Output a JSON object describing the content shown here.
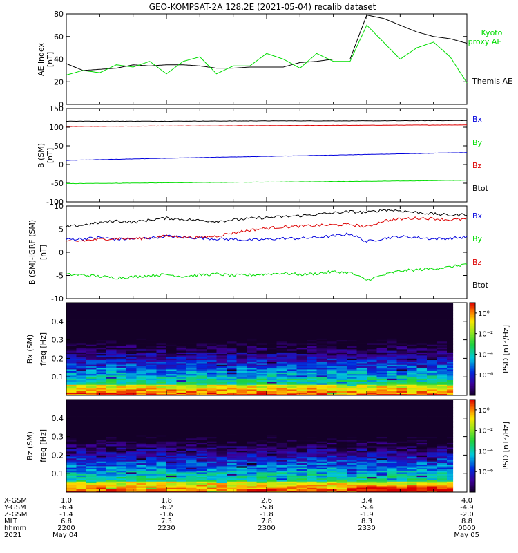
{
  "title": "GEO-KOMPSAT-2A 128.2E (2021-05-04) recalib dataset",
  "colors": {
    "black": "#000000",
    "green": "#00dd00",
    "blue": "#0000dd",
    "red": "#dd0000"
  },
  "panels": {
    "ae": {
      "ylabel": "AE index",
      "yunit": "[nT]",
      "ylim": [
        0,
        80
      ],
      "yticks": [
        "0",
        "20",
        "40",
        "60",
        "80"
      ],
      "legend": [
        {
          "text": "Kyoto",
          "color": "green"
        },
        {
          "text": "proxy AE",
          "color": "green"
        },
        {
          "text": "Themis AE",
          "color": "black"
        }
      ]
    },
    "bsm": {
      "ylabel": "B (SM)",
      "yunit": "[nT]",
      "ylim": [
        -100,
        150
      ],
      "yticks": [
        "-100",
        "-50",
        "0",
        "50",
        "100",
        "150"
      ],
      "legend": [
        {
          "text": "Bx",
          "color": "blue"
        },
        {
          "text": "By",
          "color": "green"
        },
        {
          "text": "Bz",
          "color": "red"
        },
        {
          "text": "Btot",
          "color": "black"
        }
      ]
    },
    "bigrf": {
      "ylabel": "B (SM)-IGRF (SM)",
      "yunit": "[nT]",
      "ylim": [
        -10,
        10
      ],
      "yticks": [
        "-10",
        "-5",
        "0",
        "5",
        "10"
      ],
      "legend": [
        {
          "text": "Bx",
          "color": "blue"
        },
        {
          "text": "By",
          "color": "green"
        },
        {
          "text": "Bz",
          "color": "red"
        },
        {
          "text": "Btot",
          "color": "black"
        }
      ]
    },
    "spec_bx": {
      "ylabel": "Bx (SM)",
      "ylabel2": "freq [Hz]",
      "yticks": [
        "0.1",
        "0.2",
        "0.3",
        "0.4"
      ],
      "cbar_label": "PSD [nT²/Hz]",
      "cbar_ticks": [
        "10⁰",
        "10⁻²",
        "10⁻⁴",
        "10⁻⁶"
      ]
    },
    "spec_bz": {
      "ylabel": "Bz (SM)",
      "ylabel2": "freq [Hz]",
      "yticks": [
        "0.1",
        "0.2",
        "0.3",
        "0.4"
      ],
      "cbar_label": "PSD [nT²/Hz]",
      "cbar_ticks": [
        "10⁰",
        "10⁻²",
        "10⁻⁴",
        "10⁻⁶"
      ]
    }
  },
  "footer": {
    "row_labels": [
      "X-GSM",
      "Y-GSM",
      "Z-GSM",
      "MLT",
      "hhmm",
      "2021"
    ],
    "columns": [
      [
        "1.0",
        "-6.4",
        "-1.4",
        "6.8",
        "2200",
        "May 04"
      ],
      [
        "1.8",
        "-6.2",
        "-1.6",
        "7.3",
        "2230",
        ""
      ],
      [
        "2.6",
        "-5.8",
        "-1.8",
        "7.8",
        "2300",
        ""
      ],
      [
        "3.4",
        "-5.4",
        "-1.9",
        "8.3",
        "2330",
        ""
      ],
      [
        "4.0",
        "-4.9",
        "-2.0",
        "8.8",
        "0000",
        "May 05"
      ]
    ]
  },
  "chart_data": [
    {
      "type": "line",
      "x_unit": "hhmm",
      "x": [
        2200,
        2205,
        2210,
        2215,
        2220,
        2225,
        2230,
        2235,
        2240,
        2245,
        2250,
        2255,
        2300,
        2305,
        2310,
        2315,
        2320,
        2325,
        2330,
        2335,
        2340,
        2345,
        2350,
        2355,
        2400
      ],
      "series": [
        {
          "name": "Themis AE",
          "color": "black",
          "values": [
            36,
            30,
            31,
            32,
            35,
            34,
            35,
            35,
            34,
            32,
            32,
            33,
            33,
            33,
            37,
            38,
            40,
            40,
            79,
            76,
            70,
            64,
            60,
            58,
            54
          ]
        },
        {
          "name": "Kyoto proxy AE",
          "color": "green",
          "values": [
            26,
            30,
            28,
            35,
            33,
            38,
            27,
            38,
            42,
            27,
            34,
            34,
            45,
            40,
            32,
            45,
            38,
            38,
            70,
            55,
            40,
            50,
            55,
            42,
            19
          ]
        }
      ],
      "ylabel": "AE index",
      "ylim": [
        0,
        80
      ]
    },
    {
      "type": "line",
      "x_unit": "hhmm",
      "x": [
        2200,
        2230,
        2300,
        2330,
        2400
      ],
      "series": [
        {
          "name": "Bx",
          "color": "blue",
          "values": [
            11,
            17,
            22,
            27,
            32
          ]
        },
        {
          "name": "By",
          "color": "green",
          "values": [
            -51,
            -49,
            -47,
            -45,
            -42
          ]
        },
        {
          "name": "Bz",
          "color": "red",
          "values": [
            102,
            103,
            104,
            105,
            106
          ]
        },
        {
          "name": "Btot",
          "color": "black",
          "values": [
            116,
            116,
            117,
            117,
            118
          ]
        }
      ],
      "ylabel": "B (SM)",
      "ylim": [
        -100,
        150
      ]
    },
    {
      "type": "line",
      "x_unit": "hhmm",
      "x": [
        2200,
        2205,
        2210,
        2215,
        2220,
        2225,
        2230,
        2235,
        2240,
        2245,
        2250,
        2255,
        2300,
        2305,
        2310,
        2315,
        2320,
        2325,
        2330,
        2335,
        2340,
        2345,
        2350,
        2355,
        2400
      ],
      "series": [
        {
          "name": "Bx",
          "color": "blue",
          "values": [
            2.8,
            2.9,
            3.2,
            2.8,
            2.9,
            3.1,
            3.5,
            3.2,
            3.1,
            2.9,
            2.8,
            2.6,
            2.8,
            3.0,
            3.0,
            3.2,
            3.5,
            4.0,
            2.3,
            3.0,
            3.4,
            3.2,
            2.9,
            3.0,
            3.3
          ]
        },
        {
          "name": "By",
          "color": "green",
          "values": [
            -4.8,
            -4.9,
            -5.2,
            -5.5,
            -5.3,
            -5.0,
            -4.8,
            -5.2,
            -4.9,
            -4.7,
            -5.0,
            -4.9,
            -4.7,
            -4.5,
            -4.8,
            -4.6,
            -4.2,
            -4.4,
            -6.0,
            -4.9,
            -4.0,
            -3.8,
            -3.5,
            -3.2,
            -2.5
          ]
        },
        {
          "name": "Bz",
          "color": "red",
          "values": [
            2.2,
            2.5,
            2.8,
            3.0,
            2.9,
            3.1,
            3.5,
            3.3,
            3.2,
            3.5,
            4.2,
            4.8,
            5.2,
            5.5,
            5.6,
            5.8,
            5.9,
            6.0,
            5.5,
            6.8,
            7.2,
            7.4,
            7.3,
            7.0,
            7.2
          ]
        },
        {
          "name": "Btot",
          "color": "black",
          "values": [
            5.5,
            5.9,
            6.4,
            6.8,
            6.5,
            7.0,
            7.4,
            7.1,
            6.9,
            6.7,
            7.0,
            7.3,
            7.5,
            7.7,
            7.9,
            8.2,
            8.5,
            8.8,
            8.6,
            9.2,
            9.0,
            8.6,
            8.3,
            8.0,
            8.2
          ]
        }
      ],
      "ylabel": "B (SM)-IGRF (SM)",
      "ylim": [
        -10,
        10
      ]
    },
    {
      "type": "heatmap",
      "ylabel": "Bx (SM)",
      "y_unit": "freq [Hz]",
      "ylim": [
        0,
        0.5
      ],
      "color_scale": "log PSD 10^-8 to 10^1 nT^2/Hz",
      "note": "broadband noise; power highest below 0.1 Hz"
    },
    {
      "type": "heatmap",
      "ylabel": "Bz (SM)",
      "y_unit": "freq [Hz]",
      "ylim": [
        0,
        0.5
      ],
      "color_scale": "log PSD 10^-8 to 10^1 nT^2/Hz",
      "note": "broadband noise; power highest below 0.1 Hz, enhanced after 2330"
    }
  ]
}
